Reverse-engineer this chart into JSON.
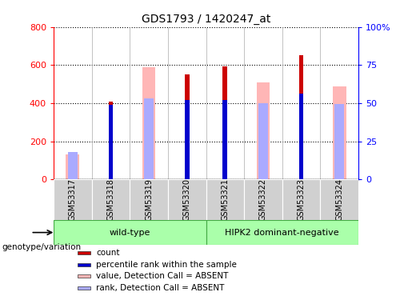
{
  "title": "GDS1793 / 1420247_at",
  "samples": [
    "GSM53317",
    "GSM53318",
    "GSM53319",
    "GSM53320",
    "GSM53321",
    "GSM53322",
    "GSM53323",
    "GSM53324"
  ],
  "count_values": [
    0,
    410,
    0,
    550,
    595,
    0,
    650,
    0
  ],
  "percentile_rank_values": [
    0,
    390,
    0,
    415,
    415,
    0,
    450,
    0
  ],
  "pink_value": [
    130,
    0,
    590,
    0,
    0,
    510,
    0,
    490
  ],
  "blue_rank_value": [
    145,
    0,
    425,
    0,
    0,
    400,
    0,
    395
  ],
  "wild_type_indices": [
    0,
    1,
    2,
    3
  ],
  "hipk2_indices": [
    4,
    5,
    6,
    7
  ],
  "ylim": [
    0,
    800
  ],
  "yticks": [
    0,
    200,
    400,
    600,
    800
  ],
  "right_yticks": [
    0,
    25,
    50,
    75,
    100
  ],
  "color_count": "#CC0000",
  "color_rank": "#0000CC",
  "color_pink": "#FFB6B6",
  "color_blue_rank": "#AAAAFF",
  "color_sample_bg": "#D0D0D0",
  "color_wildtype_bg": "#AAFFAA",
  "color_hipk2_bg": "#66EE66",
  "genotype_label": "genotype/variation",
  "wildtype_label": "wild-type",
  "hipk2_label": "HIPK2 dominant-negative",
  "legend_count": "count",
  "legend_rank": "percentile rank within the sample",
  "legend_pink": "value, Detection Call = ABSENT",
  "legend_blue": "rank, Detection Call = ABSENT"
}
